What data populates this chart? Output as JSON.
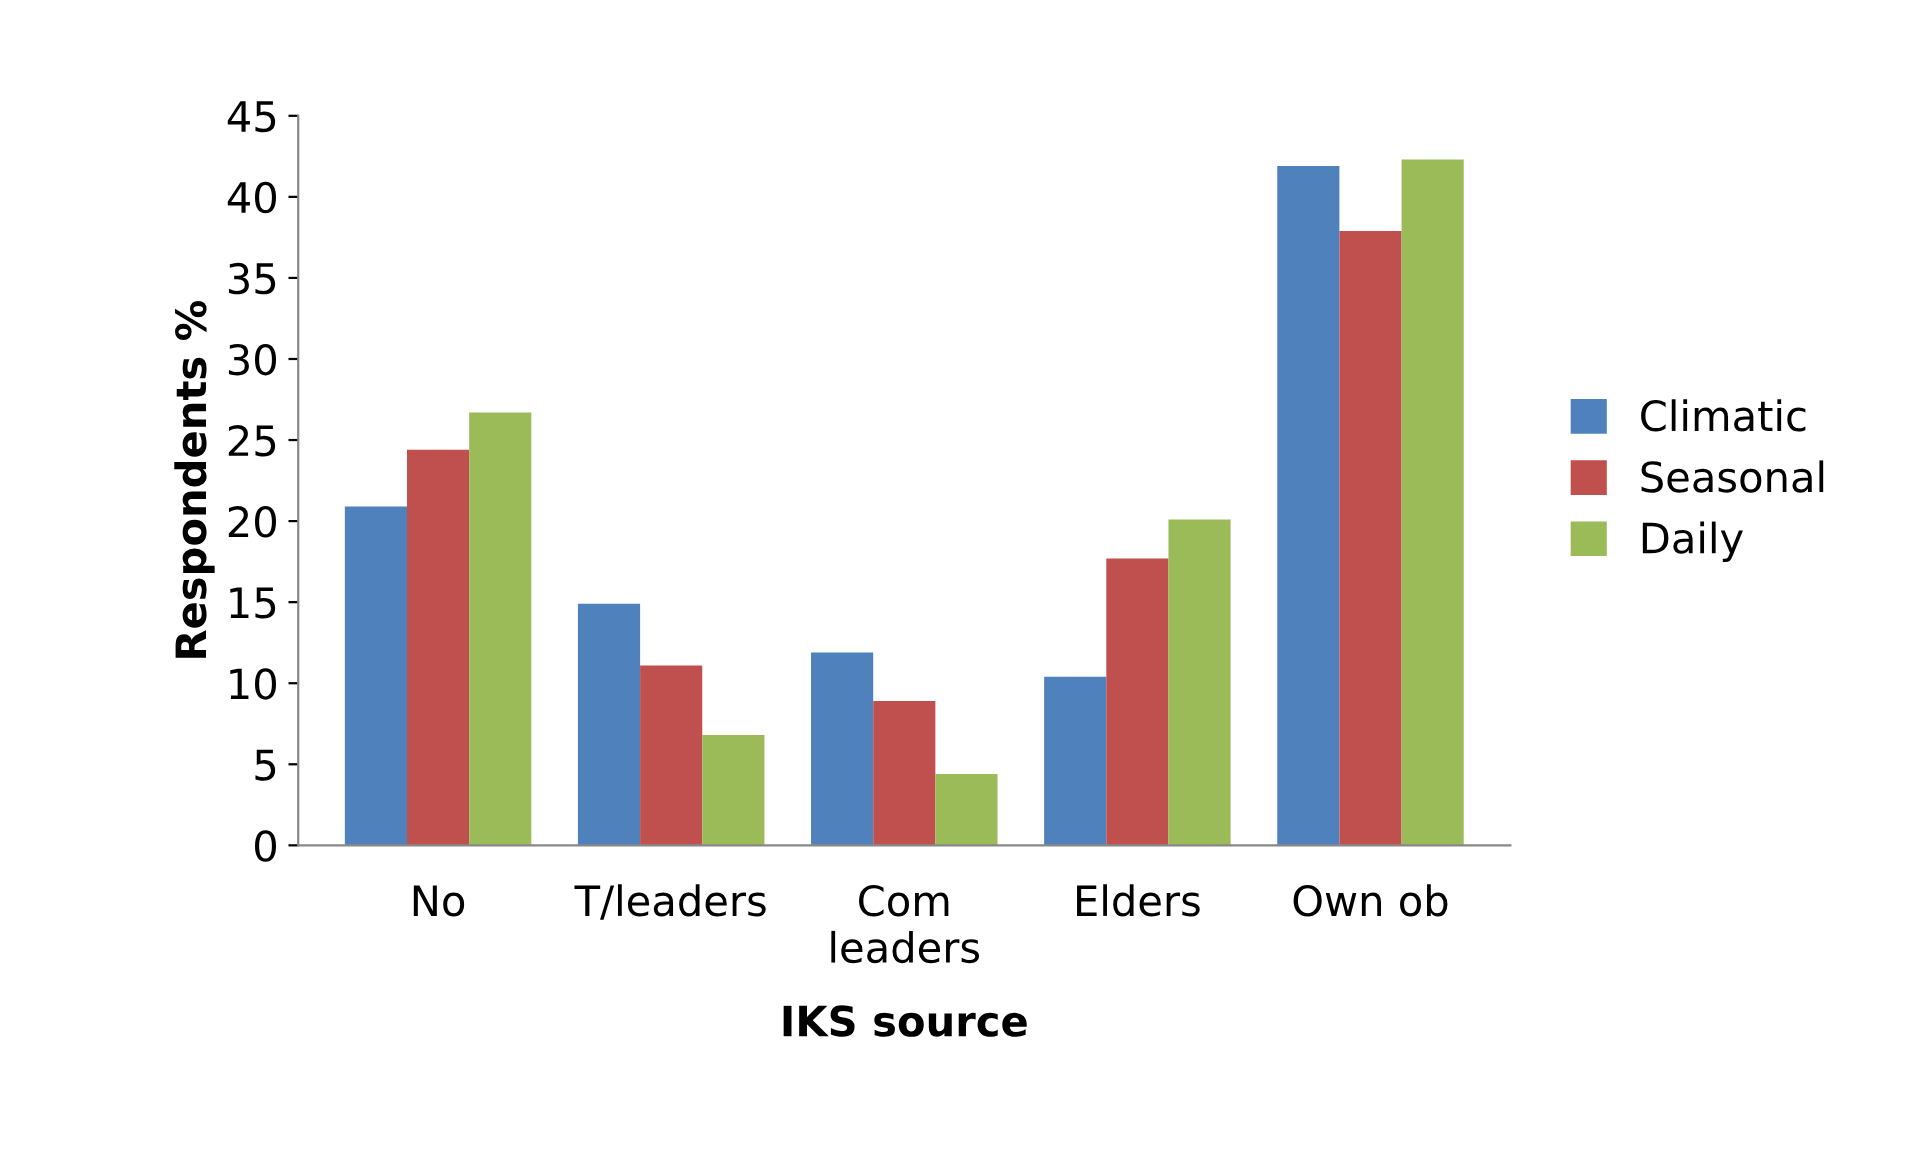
{
  "chart_data": {
    "type": "bar",
    "xlabel": "IKS source",
    "ylabel": "Respondents %",
    "categories": [
      "No",
      "T/leaders",
      "Com\nleaders",
      "Elders",
      "Own ob"
    ],
    "series": [
      {
        "name": "Climatic",
        "color": "#4f81bd",
        "values": [
          20.9,
          14.9,
          11.9,
          10.4,
          41.9
        ]
      },
      {
        "name": "Seasonal",
        "color": "#c0504d",
        "values": [
          24.4,
          11.1,
          8.9,
          17.7,
          37.9
        ]
      },
      {
        "name": "Daily",
        "color": "#9bbb59",
        "values": [
          26.7,
          6.8,
          4.4,
          20.1,
          42.3
        ]
      }
    ],
    "ylim": [
      0,
      45
    ],
    "yticks": [
      0,
      5,
      10,
      15,
      20,
      25,
      30,
      35,
      40,
      45
    ],
    "grid": false,
    "legend": "right"
  }
}
